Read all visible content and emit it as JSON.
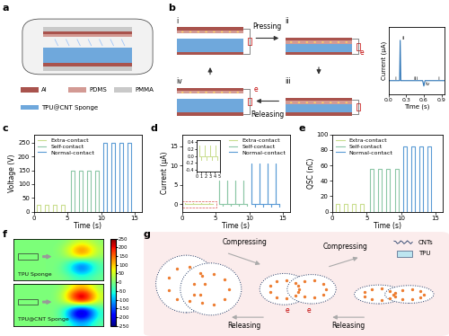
{
  "panel_labels": [
    "a",
    "b",
    "c",
    "d",
    "e",
    "f",
    "g"
  ],
  "a": {
    "legend": [
      {
        "name": "Al",
        "color": "#a9534d"
      },
      {
        "name": "PDMS",
        "color": "#d39a94"
      },
      {
        "name": "PMMA",
        "color": "#c9c9c9"
      },
      {
        "name": "TPU@CNT Sponge",
        "color": "#6fa8dc"
      }
    ]
  },
  "b": {
    "stages": [
      "i",
      "ii",
      "iii",
      "iv"
    ],
    "steps": [
      "Pressing",
      "Releasing"
    ],
    "electrons": [
      "e",
      "e"
    ]
  },
  "g": {
    "steps": [
      "Compressing",
      "Compressing",
      "Releasing",
      "Releasing"
    ],
    "electrons": [
      "e",
      "e"
    ],
    "legend": [
      "CNTs",
      "TPU"
    ]
  },
  "chart_data": [
    {
      "type": "line",
      "xlabel": "Time (s)",
      "ylabel": "Current (μA)",
      "xlim": [
        0,
        0.95
      ],
      "ylim": [
        -3,
        12
      ],
      "xticks": [
        0.0,
        0.3,
        0.6,
        0.9
      ],
      "tick_labels": "x",
      "series": [
        {
          "color": "#2e75b6",
          "x": [
            0.0,
            0.19,
            0.2,
            0.21,
            0.58,
            0.6,
            0.62,
            0.95
          ],
          "values": [
            0,
            0,
            9,
            0,
            0,
            -1.2,
            0,
            0
          ]
        }
      ],
      "point_labels": [
        {
          "text": "i",
          "x": 0.08,
          "y": 0
        },
        {
          "text": "ii",
          "x": 0.2,
          "y": 9
        },
        {
          "text": "iii",
          "x": 0.4,
          "y": 0
        },
        {
          "text": "iv",
          "x": 0.6,
          "y": -1.2
        },
        {
          "text": "i",
          "x": 0.82,
          "y": 0
        }
      ]
    },
    {
      "type": "line",
      "xlabel": "Time (s)",
      "ylabel": "Voltage (V)",
      "xlim": [
        0,
        16
      ],
      "ylim": [
        0,
        280
      ],
      "xticks": [
        0,
        5,
        10,
        15
      ],
      "yticks": [
        0,
        50,
        100,
        150,
        200,
        250
      ],
      "legend": "upper left",
      "series": [
        {
          "name": "Extra-contact",
          "color": "#c9dd8f",
          "x": [
            0,
            0.5,
            0.5,
            1.0,
            1.0,
            1.7,
            1.7,
            2.2,
            2.2,
            2.9,
            2.9,
            3.4,
            3.4,
            4.1,
            4.1,
            4.6,
            4.6,
            5.0
          ],
          "values": [
            0,
            0,
            25,
            25,
            0,
            0,
            25,
            25,
            0,
            0,
            25,
            25,
            0,
            0,
            25,
            25,
            0,
            0
          ]
        },
        {
          "name": "Self-contact",
          "color": "#8cc7a6",
          "x": [
            5.0,
            5.5,
            5.5,
            6.0,
            6.0,
            6.7,
            6.7,
            7.2,
            7.2,
            7.9,
            7.9,
            8.4,
            8.4,
            9.1,
            9.1,
            9.6,
            9.6,
            10.0
          ],
          "values": [
            0,
            0,
            150,
            150,
            0,
            0,
            150,
            150,
            0,
            0,
            150,
            150,
            0,
            0,
            150,
            150,
            0,
            0
          ]
        },
        {
          "name": "Normal-contact",
          "color": "#5b9bd5",
          "x": [
            10.0,
            10.3,
            10.3,
            10.8,
            10.8,
            11.5,
            11.5,
            12.0,
            12.0,
            12.7,
            12.7,
            13.2,
            13.2,
            13.9,
            13.9,
            14.4,
            14.4,
            15.0
          ],
          "values": [
            0,
            0,
            250,
            250,
            0,
            0,
            250,
            250,
            0,
            0,
            250,
            250,
            0,
            0,
            250,
            250,
            0,
            0
          ]
        }
      ]
    },
    {
      "type": "spike",
      "xlabel": "Time (s)",
      "ylabel": "Current (μA)",
      "xlim": [
        0,
        16
      ],
      "ylim": [
        -2,
        18
      ],
      "xticks": [
        0,
        5,
        10,
        15
      ],
      "yticks": [
        0,
        5,
        10,
        15
      ],
      "legend": "upper right",
      "series": [
        {
          "name": "Extra-contact",
          "color": "#c9dd8f",
          "x": [
            0.5,
            1.0,
            1.7,
            2.2,
            2.9,
            3.4,
            4.1,
            4.6
          ],
          "values": [
            0.3,
            -0.1,
            0.3,
            -0.1,
            0.3,
            -0.1,
            0.3,
            -0.1
          ]
        },
        {
          "name": "Self-contact",
          "color": "#8cc7a6",
          "x": [
            5.5,
            6.0,
            6.7,
            7.2,
            7.9,
            8.4,
            9.1,
            9.6
          ],
          "values": [
            6,
            -0.5,
            6,
            -0.5,
            6,
            -0.5,
            6,
            -0.5
          ]
        },
        {
          "name": "Normal-contact",
          "color": "#5b9bd5",
          "x": [
            10.3,
            10.8,
            11.5,
            12.0,
            12.7,
            13.2,
            13.9,
            14.4
          ],
          "values": [
            10.5,
            -0.8,
            10.5,
            -0.8,
            10.5,
            -0.8,
            10.5,
            -0.8
          ]
        }
      ],
      "inset": {
        "series": "Extra-contact",
        "xlim": [
          0,
          5
        ],
        "ylim": [
          -0.45,
          0.45
        ],
        "xticks": [
          0,
          1,
          2,
          3,
          4,
          5
        ],
        "yticks": [
          -0.4,
          -0.2,
          0.0,
          0.2,
          0.4
        ]
      }
    },
    {
      "type": "line",
      "xlabel": "Time (s)",
      "ylabel": "QSC (nC)",
      "xlim": [
        0,
        16
      ],
      "ylim": [
        0,
        100
      ],
      "xticks": [
        0,
        5,
        10,
        15
      ],
      "yticks": [
        0,
        20,
        40,
        60,
        80,
        100
      ],
      "legend": "upper left",
      "series": [
        {
          "name": "Extra-contact",
          "color": "#c9dd8f",
          "x": [
            0,
            0.5,
            0.5,
            1.0,
            1.0,
            1.7,
            1.7,
            2.2,
            2.2,
            2.9,
            2.9,
            3.4,
            3.4,
            4.1,
            4.1,
            4.6,
            4.6,
            5.0
          ],
          "values": [
            0,
            0,
            10,
            10,
            0,
            0,
            10,
            10,
            0,
            0,
            10,
            10,
            0,
            0,
            10,
            10,
            0,
            0
          ]
        },
        {
          "name": "Self-contact",
          "color": "#8cc7a6",
          "x": [
            5.0,
            5.5,
            5.5,
            6.0,
            6.0,
            6.7,
            6.7,
            7.2,
            7.2,
            7.9,
            7.9,
            8.4,
            8.4,
            9.1,
            9.1,
            9.6,
            9.6,
            10.0
          ],
          "values": [
            0,
            0,
            55,
            55,
            0,
            0,
            55,
            55,
            0,
            0,
            55,
            55,
            0,
            0,
            55,
            55,
            0,
            0
          ]
        },
        {
          "name": "Normal-contact",
          "color": "#5b9bd5",
          "x": [
            10.0,
            10.3,
            10.3,
            10.8,
            10.8,
            11.5,
            11.5,
            12.0,
            12.0,
            12.7,
            12.7,
            13.2,
            13.2,
            13.9,
            13.9,
            14.4,
            14.4,
            15.0
          ],
          "values": [
            0,
            0,
            85,
            85,
            0,
            0,
            85,
            85,
            0,
            0,
            85,
            85,
            0,
            0,
            85,
            85,
            0,
            0
          ]
        }
      ]
    },
    {
      "type": "heatmap",
      "tick_labels": false,
      "colorbar_range": [
        -250,
        250
      ],
      "colorbar_ticks": [
        250,
        200,
        150,
        100,
        50,
        0,
        -50,
        -100,
        -150,
        -200,
        -250
      ],
      "maps": [
        {
          "label": "TPU Sponge",
          "cells": [
            [
              0,
              0,
              0,
              0,
              0,
              0,
              20,
              40,
              30,
              10
            ],
            [
              0,
              0,
              0,
              0,
              0,
              20,
              80,
              150,
              100,
              30
            ],
            [
              0,
              0,
              0,
              0,
              0,
              10,
              60,
              120,
              80,
              20
            ],
            [
              0,
              0,
              0,
              0,
              0,
              -10,
              -60,
              -120,
              -80,
              -20
            ],
            [
              0,
              0,
              0,
              0,
              0,
              -20,
              -80,
              -150,
              -100,
              -30
            ],
            [
              0,
              0,
              0,
              0,
              0,
              0,
              -20,
              -40,
              -30,
              -10
            ]
          ]
        },
        {
          "label": "TPU@CNT Sponge",
          "cells": [
            [
              0,
              0,
              0,
              0,
              0,
              10,
              60,
              100,
              70,
              20
            ],
            [
              0,
              0,
              0,
              0,
              0,
              40,
              160,
              250,
              180,
              50
            ],
            [
              0,
              0,
              0,
              0,
              0,
              30,
              120,
              220,
              150,
              40
            ],
            [
              0,
              0,
              0,
              0,
              0,
              -30,
              -120,
              -220,
              -150,
              -40
            ],
            [
              0,
              0,
              0,
              0,
              0,
              -40,
              -160,
              -250,
              -180,
              -50
            ],
            [
              0,
              0,
              0,
              0,
              0,
              -10,
              -60,
              -100,
              -70,
              -20
            ]
          ]
        }
      ]
    }
  ]
}
